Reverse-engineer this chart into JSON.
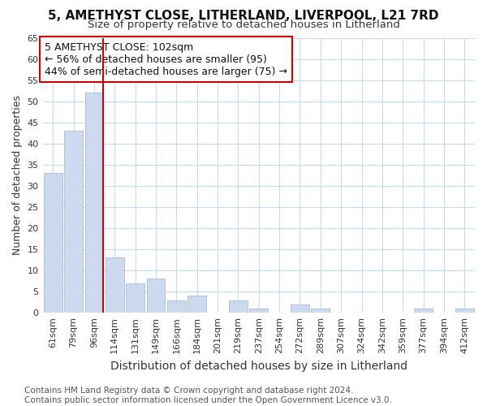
{
  "title": "5, AMETHYST CLOSE, LITHERLAND, LIVERPOOL, L21 7RD",
  "subtitle": "Size of property relative to detached houses in Litherland",
  "xlabel": "Distribution of detached houses by size in Litherland",
  "ylabel": "Number of detached properties",
  "bar_categories": [
    "61sqm",
    "79sqm",
    "96sqm",
    "114sqm",
    "131sqm",
    "149sqm",
    "166sqm",
    "184sqm",
    "201sqm",
    "219sqm",
    "237sqm",
    "254sqm",
    "272sqm",
    "289sqm",
    "307sqm",
    "324sqm",
    "342sqm",
    "359sqm",
    "377sqm",
    "394sqm",
    "412sqm"
  ],
  "bar_values": [
    33,
    43,
    52,
    13,
    7,
    8,
    3,
    4,
    0,
    3,
    1,
    0,
    2,
    1,
    0,
    0,
    0,
    0,
    1,
    0,
    1
  ],
  "bar_color": "#ccd9ee",
  "bar_edge_color": "#aabbd8",
  "vline_x_index": 2,
  "vline_color": "#cc0000",
  "annotation_text": "5 AMETHYST CLOSE: 102sqm\n← 56% of detached houses are smaller (95)\n44% of semi-detached houses are larger (75) →",
  "annotation_box_color": "#ffffff",
  "annotation_box_edge": "#cc0000",
  "ylim": [
    0,
    65
  ],
  "yticks": [
    0,
    5,
    10,
    15,
    20,
    25,
    30,
    35,
    40,
    45,
    50,
    55,
    60,
    65
  ],
  "footer_text": "Contains HM Land Registry data © Crown copyright and database right 2024.\nContains public sector information licensed under the Open Government Licence v3.0.",
  "background_color": "#ffffff",
  "plot_bg_color": "#ffffff",
  "grid_color": "#c8d8ee",
  "title_fontsize": 11,
  "subtitle_fontsize": 9.5,
  "xlabel_fontsize": 10,
  "ylabel_fontsize": 9,
  "tick_fontsize": 8,
  "annotation_fontsize": 9,
  "footer_fontsize": 7.5
}
